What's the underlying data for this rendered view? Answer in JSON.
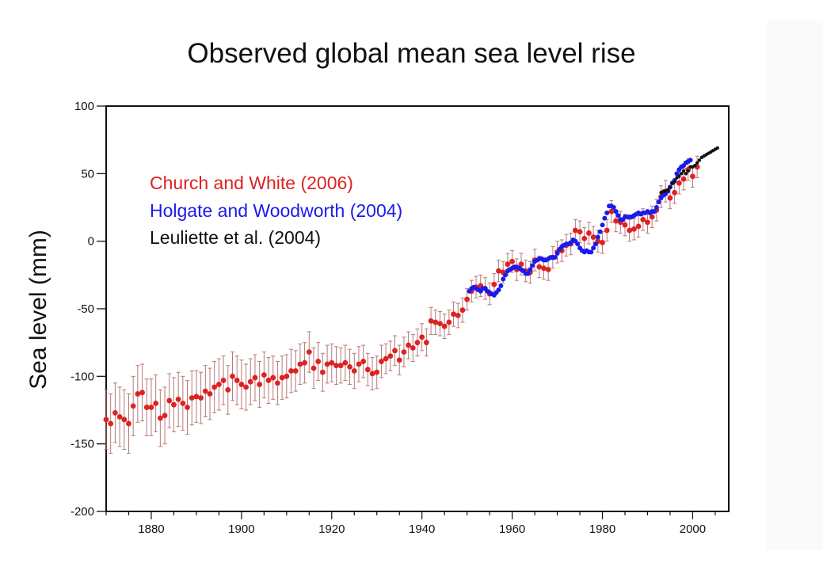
{
  "chart_data": {
    "type": "scatter",
    "title": "Observed global mean sea level rise",
    "xlabel": "",
    "ylabel": "Sea level (mm)",
    "xlim": [
      1870,
      2008
    ],
    "ylim": [
      -200,
      100
    ],
    "xticks": [
      1880,
      1900,
      1920,
      1940,
      1960,
      1980,
      2000
    ],
    "yticks": [
      100,
      50,
      0,
      -50,
      -100,
      -150,
      -200
    ],
    "grid": false,
    "legend_position": "top-left",
    "series": [
      {
        "name": "Church and White (2006)",
        "color": "#dd2222",
        "errorbar_color": "#b77777",
        "marker": "circle",
        "x": [
          1870,
          1871,
          1872,
          1873,
          1874,
          1875,
          1876,
          1877,
          1878,
          1879,
          1880,
          1881,
          1882,
          1883,
          1884,
          1885,
          1886,
          1887,
          1888,
          1889,
          1890,
          1891,
          1892,
          1893,
          1894,
          1895,
          1896,
          1897,
          1898,
          1899,
          1900,
          1901,
          1902,
          1903,
          1904,
          1905,
          1906,
          1907,
          1908,
          1909,
          1910,
          1911,
          1912,
          1913,
          1914,
          1915,
          1916,
          1917,
          1918,
          1919,
          1920,
          1921,
          1922,
          1923,
          1924,
          1925,
          1926,
          1927,
          1928,
          1929,
          1930,
          1931,
          1932,
          1933,
          1934,
          1935,
          1936,
          1937,
          1938,
          1939,
          1940,
          1941,
          1942,
          1943,
          1944,
          1945,
          1946,
          1947,
          1948,
          1949,
          1950,
          1951,
          1952,
          1953,
          1954,
          1955,
          1956,
          1957,
          1958,
          1959,
          1960,
          1961,
          1962,
          1963,
          1964,
          1965,
          1966,
          1967,
          1968,
          1969,
          1970,
          1971,
          1972,
          1973,
          1974,
          1975,
          1976,
          1977,
          1978,
          1979,
          1980,
          1981,
          1982,
          1983,
          1984,
          1985,
          1986,
          1987,
          1988,
          1989,
          1990,
          1991,
          1992,
          1993,
          1994,
          1995,
          1996,
          1997,
          1998,
          1999,
          2000,
          2001
        ],
        "y": [
          -132,
          -135,
          -127,
          -130,
          -132,
          -135,
          -122,
          -113,
          -112,
          -123,
          -123,
          -120,
          -131,
          -129,
          -118,
          -121,
          -117,
          -120,
          -123,
          -116,
          -115,
          -116,
          -111,
          -113,
          -108,
          -106,
          -103,
          -110,
          -100,
          -103,
          -106,
          -108,
          -104,
          -101,
          -106,
          -99,
          -103,
          -101,
          -105,
          -101,
          -100,
          -96,
          -96,
          -91,
          -90,
          -82,
          -94,
          -89,
          -97,
          -91,
          -90,
          -92,
          -92,
          -90,
          -93,
          -96,
          -91,
          -89,
          -95,
          -98,
          -97,
          -89,
          -87,
          -85,
          -81,
          -88,
          -82,
          -77,
          -79,
          -75,
          -71,
          -75,
          -59,
          -60,
          -61,
          -63,
          -60,
          -54,
          -55,
          -51,
          -43,
          -37,
          -34,
          -33,
          -35,
          -39,
          -32,
          -22,
          -23,
          -17,
          -15,
          -21,
          -17,
          -22,
          -23,
          -14,
          -19,
          -20,
          -21,
          -12,
          -8,
          -7,
          -3,
          -2,
          8,
          7,
          2,
          6,
          3,
          0,
          -1,
          8,
          22,
          15,
          14,
          12,
          8,
          9,
          11,
          16,
          14,
          18,
          23,
          33,
          37,
          32,
          36,
          43,
          46,
          53,
          48,
          55
        ],
        "err": [
          22,
          22,
          22,
          22,
          22,
          22,
          22,
          21,
          21,
          21,
          21,
          21,
          21,
          21,
          20,
          20,
          20,
          20,
          20,
          20,
          19,
          19,
          19,
          19,
          19,
          19,
          18,
          18,
          18,
          18,
          18,
          17,
          17,
          17,
          17,
          17,
          17,
          16,
          16,
          16,
          16,
          16,
          15,
          15,
          15,
          15,
          15,
          14,
          14,
          14,
          14,
          14,
          13,
          13,
          13,
          13,
          13,
          12,
          12,
          12,
          12,
          12,
          11,
          11,
          11,
          11,
          11,
          10,
          10,
          10,
          10,
          10,
          10,
          9,
          9,
          9,
          9,
          9,
          9,
          9,
          8,
          8,
          8,
          8,
          8,
          8,
          8,
          8,
          8,
          8,
          8,
          8,
          8,
          8,
          8,
          8,
          8,
          8,
          8,
          8,
          8,
          8,
          8,
          8,
          8,
          8,
          8,
          8,
          8,
          8,
          8,
          8,
          8,
          8,
          8,
          8,
          8,
          8,
          8,
          8,
          8,
          8,
          8,
          8,
          8,
          8,
          8,
          8,
          8,
          8,
          8,
          8
        ]
      },
      {
        "name": "Holgate and Woodworth (2004)",
        "color": "#1a1aee",
        "marker": "circle",
        "x": [
          1950.5,
          1951,
          1951.5,
          1952,
          1952.5,
          1953,
          1953.5,
          1954,
          1954.5,
          1955,
          1955.5,
          1956,
          1956.5,
          1957,
          1957.5,
          1958,
          1958.5,
          1959,
          1959.5,
          1960,
          1960.5,
          1961,
          1961.5,
          1962,
          1962.5,
          1963,
          1963.5,
          1964,
          1964.5,
          1965,
          1965.5,
          1966,
          1966.5,
          1967,
          1967.5,
          1968,
          1968.5,
          1969,
          1969.5,
          1970,
          1970.5,
          1971,
          1971.5,
          1972,
          1972.5,
          1973,
          1973.5,
          1974,
          1974.5,
          1975,
          1975.5,
          1976,
          1976.5,
          1977,
          1977.5,
          1978,
          1978.5,
          1979,
          1979.5,
          1980,
          1980.5,
          1981,
          1981.5,
          1982,
          1982.5,
          1983,
          1983.5,
          1984,
          1984.5,
          1985,
          1985.5,
          1986,
          1986.5,
          1987,
          1987.5,
          1988,
          1988.5,
          1989,
          1989.5,
          1990,
          1990.5,
          1991,
          1991.5,
          1992,
          1992.5,
          1993,
          1993.5,
          1994,
          1994.5,
          1995,
          1995.5,
          1996,
          1996.5,
          1997,
          1997.5,
          1998,
          1998.5,
          1999,
          1999.5
        ],
        "y": [
          -37,
          -35,
          -34,
          -35,
          -36,
          -37,
          -35,
          -35,
          -37,
          -38,
          -39,
          -40,
          -38,
          -36,
          -33,
          -28,
          -25,
          -22,
          -21,
          -20,
          -19,
          -19,
          -20,
          -21,
          -22,
          -24,
          -24,
          -21,
          -18,
          -15,
          -14,
          -13,
          -13,
          -14,
          -14,
          -13,
          -12,
          -12,
          -12,
          -9,
          -6,
          -4,
          -3,
          -2,
          -2,
          -1,
          1,
          0,
          -2,
          -5,
          -7,
          -8,
          -7,
          -8,
          -8,
          -5,
          -2,
          3,
          7,
          12,
          17,
          21,
          26,
          26,
          25,
          22,
          19,
          16,
          16,
          18,
          18,
          18,
          18,
          19,
          20,
          21,
          20,
          21,
          21,
          22,
          21,
          22,
          22,
          25,
          29,
          32,
          34,
          35,
          37,
          40,
          43,
          45,
          50,
          53,
          55,
          56,
          58,
          59,
          60
        ]
      },
      {
        "name": "Leuliette et al. (2004)",
        "color": "#111111",
        "marker": "circle",
        "x": [
          1993,
          1993.5,
          1994,
          1994.5,
          1995,
          1995.5,
          1996,
          1996.5,
          1997,
          1997.5,
          1998,
          1998.5,
          1999,
          1999.5,
          2000,
          2000.5,
          2001,
          2001.5,
          2002,
          2002.5,
          2003,
          2003.5,
          2004,
          2004.5,
          2005,
          2005.5
        ],
        "y": [
          36,
          37,
          37,
          38,
          40,
          43,
          44,
          47,
          48,
          50,
          52,
          50,
          52,
          55,
          55,
          56,
          58,
          60,
          62,
          63,
          64,
          65,
          66,
          67,
          68,
          69
        ]
      }
    ]
  }
}
